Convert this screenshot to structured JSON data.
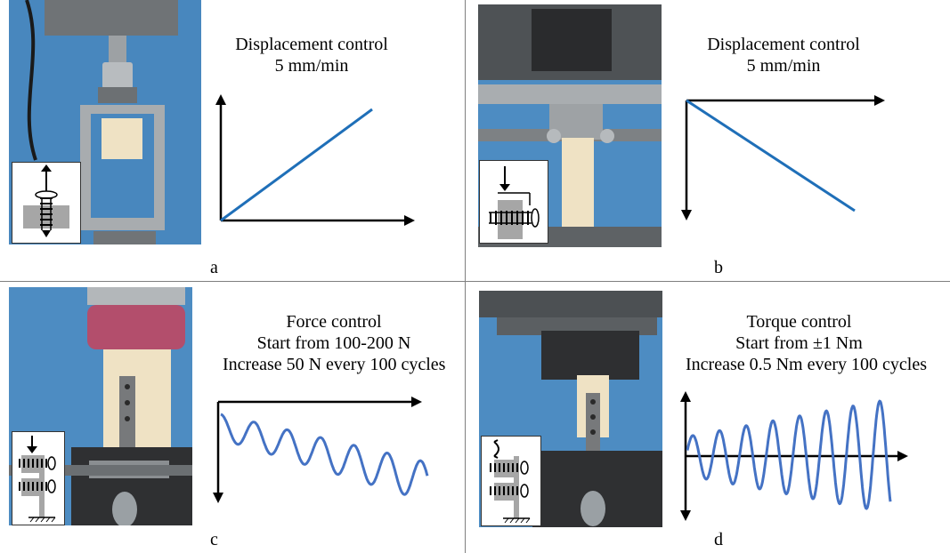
{
  "panels": {
    "a": {
      "label": "a",
      "caption_line1": "Displacement control",
      "caption_line2": "5 mm/min",
      "graph": "linear ramp up"
    },
    "b": {
      "label": "b",
      "caption_line1": "Displacement control",
      "caption_line2": "5 mm/min",
      "graph": "linear ramp down"
    },
    "c": {
      "label": "c",
      "caption_line1": "Force control",
      "caption_line2": "Start from 100-200 N",
      "caption_line3": "Increase 50 N every 100 cycles",
      "graph": "decaying-offset oscillation"
    },
    "d": {
      "label": "d",
      "caption_line1": "Torque control",
      "caption_line2": "Start from ±1 Nm",
      "caption_line3": "Increase 0.5 Nm every 100 cycles",
      "graph": "growing-amplitude oscillation"
    }
  },
  "colors": {
    "curve_line": "#1f6fb8",
    "curve_wave": "#4472c4",
    "backdrop": "#4e8fc4",
    "metal": "#8a8d90",
    "fixture": "#2e2f31"
  }
}
